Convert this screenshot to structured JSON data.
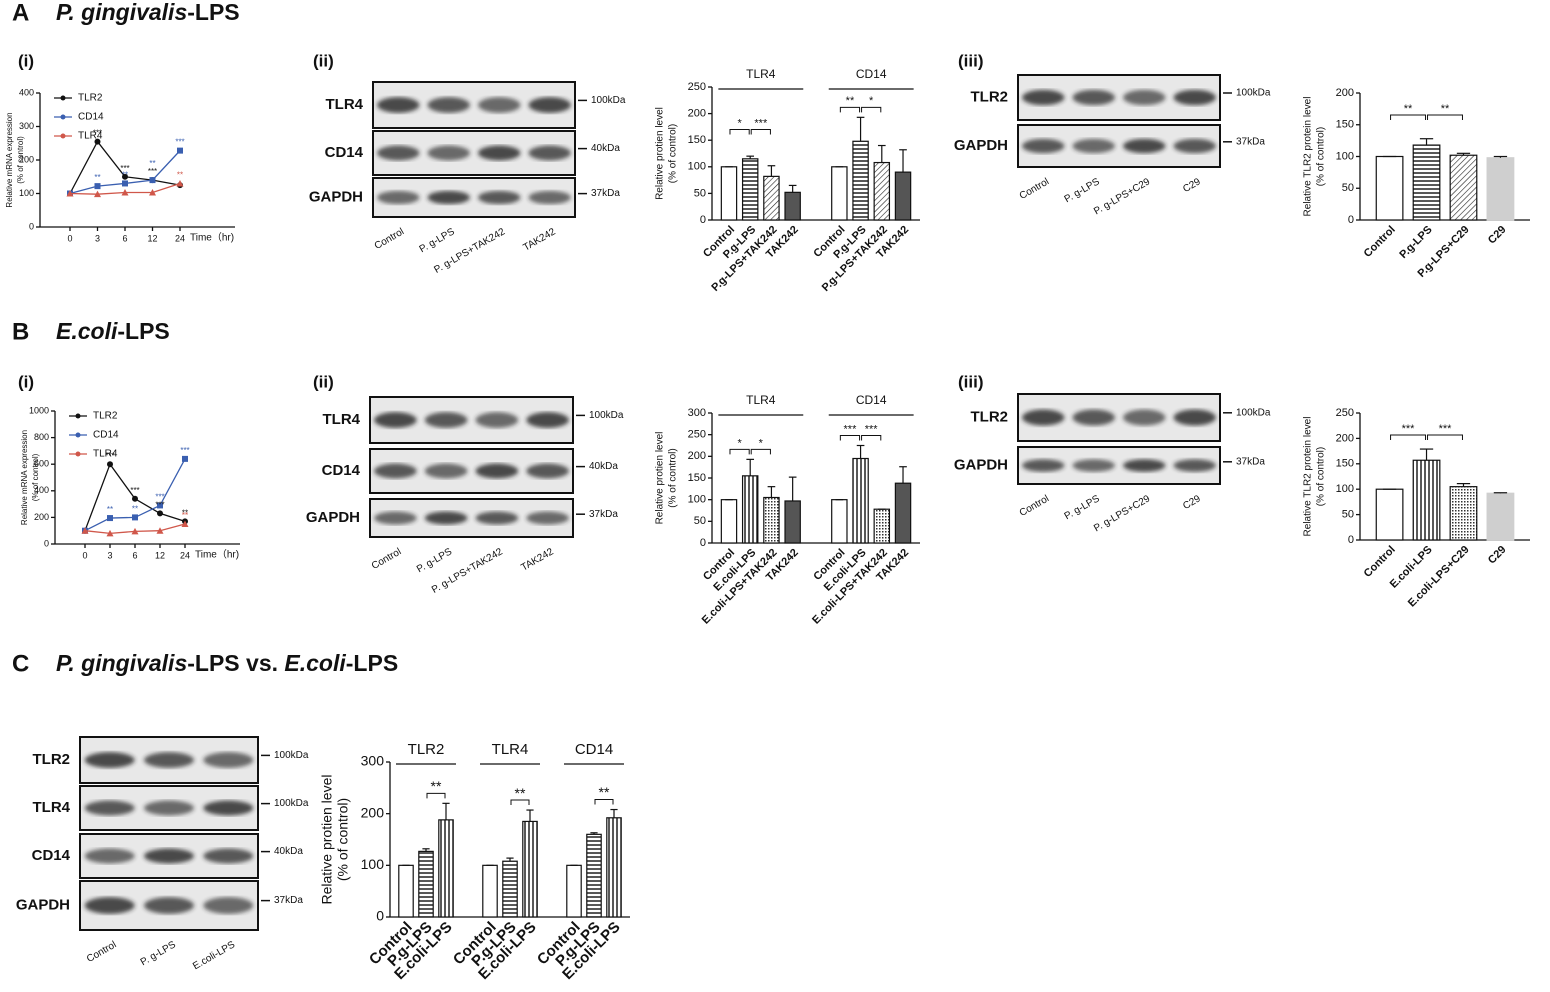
{
  "sections": [
    {
      "letter": "A",
      "title": [
        {
          "text": "P. gingivalis",
          "italic": true
        },
        {
          "text": "-LPS",
          "italic": false
        }
      ]
    },
    {
      "letter": "B",
      "title": [
        {
          "text": "E.coli",
          "italic": true
        },
        {
          "text": "-LPS",
          "italic": false
        }
      ]
    },
    {
      "letter": "C",
      "title": [
        {
          "text": "P. gingivalis",
          "italic": true
        },
        {
          "text": "-LPS vs. ",
          "italic": false
        },
        {
          "text": "E.coli",
          "italic": true
        },
        {
          "text": "-LPS",
          "italic": false
        }
      ]
    }
  ],
  "panel_labels": [
    "(i)",
    "(ii)",
    "(iii)",
    "(i)",
    "(ii)",
    "(iii)"
  ],
  "blots": [
    {
      "rows": [
        {
          "label": "TLR4",
          "marker": "100kDa"
        },
        {
          "label": "CD14",
          "marker": "40kDa"
        },
        {
          "label": "GAPDH",
          "marker": "37kDa"
        }
      ],
      "lanes": [
        "Control",
        "P. g-LPS",
        "P. g-LPS+TAK242",
        "TAK242"
      ]
    },
    {
      "rows": [
        {
          "label": "TLR2",
          "marker": "100kDa"
        },
        {
          "label": "GAPDH",
          "marker": "37kDa"
        }
      ],
      "lanes": [
        "Control",
        "P. g-LPS",
        "P. g-LPS+C29",
        "C29"
      ]
    },
    {
      "rows": [
        {
          "label": "TLR4",
          "marker": "100kDa"
        },
        {
          "label": "CD14",
          "marker": "40kDa"
        },
        {
          "label": "GAPDH",
          "marker": "37kDa"
        }
      ],
      "lanes": [
        "Control",
        "P. g-LPS",
        "P. g-LPS+TAK242",
        "TAK242"
      ]
    },
    {
      "rows": [
        {
          "label": "TLR2",
          "marker": "100kDa"
        },
        {
          "label": "GAPDH",
          "marker": "37kDa"
        }
      ],
      "lanes": [
        "Control",
        "P. g-LPS",
        "P. g-LPS+C29",
        "C29"
      ]
    },
    {
      "rows": [
        {
          "label": "TLR2",
          "marker": "100kDa"
        },
        {
          "label": "TLR4",
          "marker": "100kDa"
        },
        {
          "label": "CD14",
          "marker": "40kDa"
        },
        {
          "label": "GAPDH",
          "marker": "37kDa"
        }
      ],
      "lanes": [
        "Control",
        "P. g-LPS",
        "E.coli-LPS"
      ]
    }
  ],
  "chart_data": [
    {
      "type": "line",
      "ylabel": [
        "Relative mRNA expression",
        "(% of control)"
      ],
      "xlabel": "Time（hr)",
      "categories": [
        "0",
        "3",
        "6",
        "12",
        "24"
      ],
      "ylim": [
        0,
        400
      ],
      "yticks": [
        0,
        100,
        200,
        300,
        400
      ],
      "series": [
        {
          "name": "TLR2",
          "color": "#111111",
          "marker": "circle",
          "values": [
            100,
            255,
            150,
            140,
            125
          ]
        },
        {
          "name": "CD14",
          "color": "#3a5fb0",
          "marker": "square",
          "values": [
            100,
            122,
            130,
            140,
            228
          ]
        },
        {
          "name": "TLR4",
          "color": "#d0574a",
          "marker": "triangle",
          "values": [
            100,
            98,
            103,
            103,
            130
          ]
        }
      ],
      "annotations": [
        {
          "text": "***",
          "series": 0,
          "index": 1
        },
        {
          "text": "**",
          "series": 1,
          "index": 1
        },
        {
          "text": "***",
          "series": 0,
          "index": 2
        },
        {
          "text": "**",
          "series": 1,
          "index": 2
        },
        {
          "text": "***",
          "series": 0,
          "index": 3
        },
        {
          "text": "**",
          "series": 1,
          "index": 3
        },
        {
          "text": "***",
          "series": 1,
          "index": 4
        },
        {
          "text": "**",
          "series": 2,
          "index": 4
        }
      ]
    },
    {
      "type": "grouped_bar",
      "ylabel": [
        "Relative protien level",
        "(% of control)"
      ],
      "categories": [
        "Control",
        "P.g-LPS",
        "P.g-LPS+TAK242",
        "TAK242"
      ],
      "fills": [
        "white",
        "hstripe",
        "diag",
        "dark"
      ],
      "ylim": [
        0,
        250
      ],
      "yticks": [
        0,
        50,
        100,
        150,
        200,
        250
      ],
      "groups": [
        {
          "name": "TLR4",
          "values": [
            100,
            115,
            82,
            52
          ],
          "errors": [
            0,
            5,
            20,
            13
          ],
          "brackets": [
            {
              "from": 0,
              "to": 1,
              "label": "*"
            },
            {
              "from": 1,
              "to": 2,
              "label": "***"
            }
          ]
        },
        {
          "name": "CD14",
          "values": [
            100,
            148,
            108,
            90
          ],
          "errors": [
            0,
            45,
            32,
            42
          ],
          "brackets": [
            {
              "from": 0,
              "to": 1,
              "label": "**"
            },
            {
              "from": 1,
              "to": 2,
              "label": "*"
            }
          ]
        }
      ]
    },
    {
      "type": "grouped_bar",
      "ylabel": [
        "Relative TLR2 protein level",
        "(% of control)"
      ],
      "categories": [
        "Control",
        "P.g-LPS",
        "P.g-LPS+C29",
        "C29"
      ],
      "fills": [
        "white",
        "hstripe",
        "diag",
        "light"
      ],
      "ylim": [
        0,
        200
      ],
      "yticks": [
        0,
        50,
        100,
        150,
        200
      ],
      "groups": [
        {
          "values": [
            100,
            118,
            102,
            98
          ],
          "errors": [
            0,
            10,
            3,
            2
          ],
          "brackets": [
            {
              "from": 0,
              "to": 1,
              "label": "**"
            },
            {
              "from": 1,
              "to": 2,
              "label": "**"
            }
          ]
        }
      ]
    },
    {
      "type": "line",
      "ylabel": [
        "Relative mRNA expression",
        "(% of control)"
      ],
      "xlabel": "Time（hr)",
      "categories": [
        "0",
        "3",
        "6",
        "12",
        "24"
      ],
      "ylim": [
        0,
        1000
      ],
      "yticks": [
        0,
        200,
        400,
        600,
        800,
        1000
      ],
      "series": [
        {
          "name": "TLR2",
          "color": "#111111",
          "marker": "circle",
          "values": [
            100,
            600,
            340,
            230,
            170
          ]
        },
        {
          "name": "CD14",
          "color": "#3a5fb0",
          "marker": "square",
          "values": [
            100,
            195,
            200,
            290,
            640
          ]
        },
        {
          "name": "TLR4",
          "color": "#d0574a",
          "marker": "triangle",
          "values": [
            100,
            80,
            95,
            100,
            150
          ]
        }
      ],
      "annotations": [
        {
          "text": "***",
          "series": 0,
          "index": 1
        },
        {
          "text": "**",
          "series": 1,
          "index": 1
        },
        {
          "text": "***",
          "series": 0,
          "index": 2
        },
        {
          "text": "**",
          "series": 1,
          "index": 2
        },
        {
          "text": "***",
          "series": 1,
          "index": 3
        },
        {
          "text": "***",
          "series": 0,
          "index": 3
        },
        {
          "text": "***",
          "series": 1,
          "index": 4
        },
        {
          "text": "**",
          "series": 0,
          "index": 4
        },
        {
          "text": "**",
          "series": 2,
          "index": 4
        }
      ]
    },
    {
      "type": "grouped_bar",
      "ylabel": [
        "Relative protien level",
        "(% of control)"
      ],
      "categories": [
        "Control",
        "E.coli-LPS",
        "E.coli-LPS+TAK242",
        "TAK242"
      ],
      "fills": [
        "white",
        "vstripe",
        "dots",
        "dark"
      ],
      "ylim": [
        0,
        300
      ],
      "yticks": [
        0,
        50,
        100,
        150,
        200,
        250,
        300
      ],
      "groups": [
        {
          "name": "TLR4",
          "values": [
            100,
            155,
            105,
            97
          ],
          "errors": [
            0,
            38,
            25,
            55
          ],
          "brackets": [
            {
              "from": 0,
              "to": 1,
              "label": "*"
            },
            {
              "from": 1,
              "to": 2,
              "label": "*"
            }
          ]
        },
        {
          "name": "CD14",
          "values": [
            100,
            195,
            78,
            138
          ],
          "errors": [
            0,
            30,
            0,
            38
          ],
          "brackets": [
            {
              "from": 0,
              "to": 1,
              "label": "***"
            },
            {
              "from": 1,
              "to": 2,
              "label": "***"
            }
          ]
        }
      ]
    },
    {
      "type": "grouped_bar",
      "ylabel": [
        "Relative TLR2 protein level",
        "(% of control)"
      ],
      "categories": [
        "Control",
        "E.coli-LPS",
        "E.coli-LPS+C29",
        "C29"
      ],
      "fills": [
        "white",
        "vstripe",
        "dots",
        "light"
      ],
      "ylim": [
        0,
        250
      ],
      "yticks": [
        0,
        50,
        100,
        150,
        200,
        250
      ],
      "groups": [
        {
          "values": [
            100,
            157,
            105,
            92
          ],
          "errors": [
            0,
            22,
            6,
            1
          ],
          "brackets": [
            {
              "from": 0,
              "to": 1,
              "label": "***"
            },
            {
              "from": 1,
              "to": 2,
              "label": "***"
            }
          ]
        }
      ]
    },
    {
      "type": "grouped_bar",
      "ylabel": [
        "Relative protien level",
        "(% of control)"
      ],
      "categories": [
        "Control",
        "P.g-LPS",
        "E.coli-LPS"
      ],
      "fills": [
        "white",
        "hstripe",
        "vstripe"
      ],
      "ylim": [
        0,
        300
      ],
      "yticks": [
        0,
        100,
        200,
        300
      ],
      "groups": [
        {
          "name": "TLR2",
          "values": [
            100,
            127,
            188
          ],
          "errors": [
            0,
            5,
            32
          ],
          "brackets": [
            {
              "from": 1,
              "to": 2,
              "label": "**"
            }
          ]
        },
        {
          "name": "TLR4",
          "values": [
            100,
            108,
            185
          ],
          "errors": [
            0,
            6,
            22
          ],
          "brackets": [
            {
              "from": 1,
              "to": 2,
              "label": "**"
            }
          ]
        },
        {
          "name": "CD14",
          "values": [
            100,
            160,
            192
          ],
          "errors": [
            0,
            3,
            16
          ],
          "brackets": [
            {
              "from": 1,
              "to": 2,
              "label": "**"
            }
          ]
        }
      ]
    }
  ]
}
